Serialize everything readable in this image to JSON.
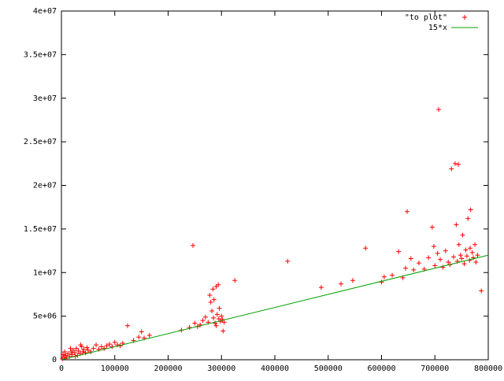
{
  "chart_data": {
    "type": "scatter",
    "xlim": [
      0,
      800000
    ],
    "ylim": [
      0,
      40000000
    ],
    "xticks": [
      0,
      100000,
      200000,
      300000,
      400000,
      500000,
      600000,
      700000,
      800000
    ],
    "yticks": [
      0,
      {
        "value": 5000000,
        "label": "5e+06"
      },
      {
        "value": 10000000,
        "label": "1e+07"
      },
      {
        "value": 15000000,
        "label": "1.5e+07"
      },
      {
        "value": 20000000,
        "label": "2e+07"
      },
      {
        "value": 25000000,
        "label": "2.5e+07"
      },
      {
        "value": 30000000,
        "label": "3e+07"
      },
      {
        "value": 35000000,
        "label": "3.5e+07"
      },
      {
        "value": 40000000,
        "label": "4e+07"
      }
    ],
    "legend": "top-right",
    "grid": false,
    "series": [
      {
        "name": "\"to plot\"",
        "color": "#ff0000",
        "marker": "plus",
        "x": [
          2000,
          5000,
          8000,
          10000,
          12000,
          15000,
          18000,
          20000,
          22000,
          25000,
          28000,
          30000,
          32000,
          35000,
          38000,
          40000,
          42000,
          45000,
          48000,
          50000,
          55000,
          60000,
          65000,
          70000,
          75000,
          80000,
          85000,
          90000,
          95000,
          100000,
          105000,
          110000,
          115000,
          124000,
          135000,
          145000,
          150000,
          155000,
          165000,
          3000,
          6000,
          17000,
          26000,
          36000,
          225000,
          240000,
          246500,
          250000,
          255000,
          260000,
          265000,
          270000,
          275000,
          278000,
          280000,
          282000,
          284000,
          286000,
          288000,
          290000,
          292000,
          294000,
          295000,
          296000,
          298000,
          300000,
          302000,
          303000,
          305000,
          285000,
          290000,
          325000,
          424000,
          487000,
          524000,
          546000,
          570000,
          600000,
          605000,
          620000,
          632000,
          640000,
          645000,
          648000,
          655000,
          660000,
          670000,
          680000,
          688000,
          695000,
          698000,
          700000,
          705000,
          707000,
          710000,
          715000,
          720000,
          725000,
          731000,
          735000,
          738000,
          740000,
          742000,
          744000,
          745000,
          748000,
          750000,
          752000,
          755000,
          758000,
          760000,
          762000,
          765000,
          767000,
          770000,
          772000,
          775000,
          777000,
          780000,
          787000,
          728000,
          766000
        ],
        "values": [
          100000,
          300000,
          500000,
          200000,
          700000,
          400000,
          900000,
          600000,
          1100000,
          800000,
          1300000,
          500000,
          1000000,
          700000,
          1500000,
          900000,
          1200000,
          800000,
          1400000,
          1100000,
          900000,
          1300000,
          1700000,
          1200000,
          1500000,
          1300000,
          1600000,
          1800000,
          1500000,
          2000000,
          1700000,
          1600000,
          1900000,
          3900000,
          2200000,
          2600000,
          3200000,
          2500000,
          2800000,
          600000,
          900000,
          1300000,
          400000,
          1700000,
          3400000,
          3700000,
          13100000,
          4200000,
          3800000,
          4000000,
          4500000,
          4900000,
          4300000,
          7400000,
          6600000,
          5600000,
          8100000,
          6900000,
          4200000,
          8400000,
          5200000,
          8600000,
          4700000,
          5900000,
          4400000,
          5000000,
          4600000,
          3300000,
          4300000,
          4800000,
          3900000,
          9100000,
          11300000,
          8300000,
          8700000,
          9100000,
          12800000,
          8900000,
          9500000,
          9700000,
          12400000,
          9400000,
          10500000,
          17000000,
          11600000,
          10300000,
          11100000,
          10400000,
          11700000,
          15200000,
          13000000,
          10800000,
          12200000,
          28700000,
          11500000,
          10600000,
          12500000,
          11200000,
          21900000,
          11800000,
          22500000,
          15500000,
          11300000,
          22400000,
          13200000,
          12000000,
          11600000,
          14300000,
          11000000,
          12600000,
          11900000,
          16200000,
          11400000,
          17200000,
          12300000,
          11700000,
          13200000,
          11200000,
          12000000,
          7900000,
          10900000,
          12800000
        ]
      },
      {
        "name": "15*x",
        "color": "#00a000",
        "marker": "line",
        "x": [
          0,
          800000
        ],
        "values": [
          0,
          12000000
        ]
      }
    ]
  }
}
